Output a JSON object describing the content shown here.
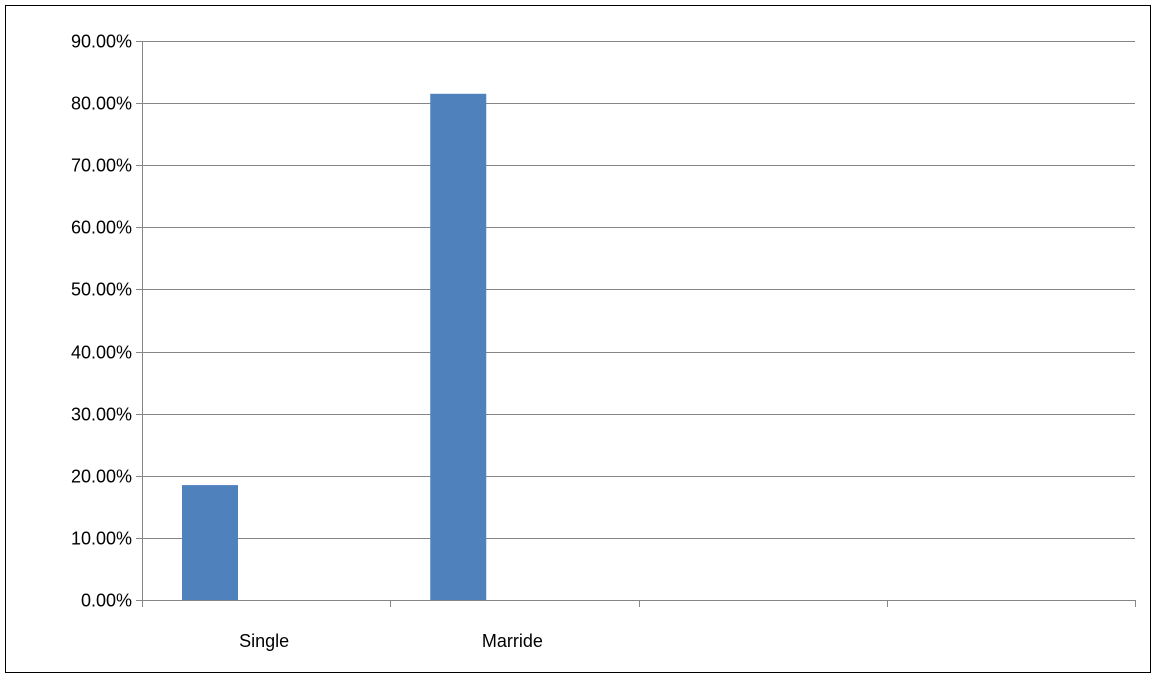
{
  "chart_data": {
    "type": "bar",
    "title": "",
    "xlabel": "",
    "ylabel": "",
    "categories": [
      "Single",
      "Marride",
      "",
      ""
    ],
    "values": [
      18.5,
      81.5,
      null,
      null
    ],
    "ylim": [
      0,
      90
    ],
    "y_ticks": [
      "0.00%",
      "10.00%",
      "20.00%",
      "30.00%",
      "40.00%",
      "50.00%",
      "60.00%",
      "70.00%",
      "80.00%",
      "90.00%"
    ],
    "grid": true,
    "legend": "none",
    "bar_color": "#4F81BD",
    "grid_color": "#868686"
  }
}
